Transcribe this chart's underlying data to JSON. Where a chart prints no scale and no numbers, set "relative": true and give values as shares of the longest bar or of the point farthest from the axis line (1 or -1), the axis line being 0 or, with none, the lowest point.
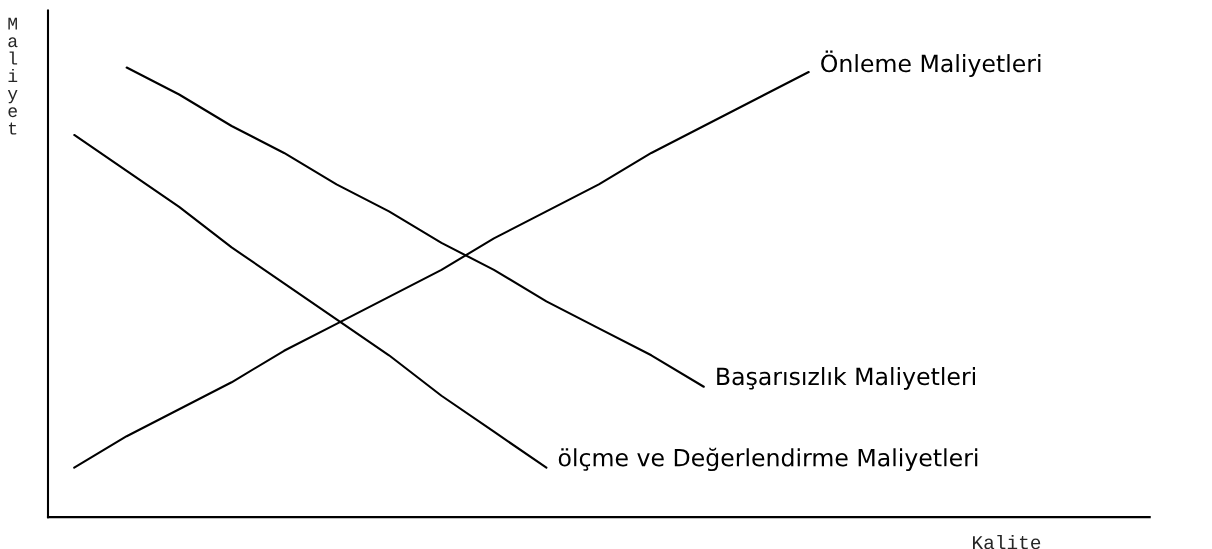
{
  "chart_data": {
    "type": "line",
    "relative": true,
    "xlabel": "Kalite",
    "ylabel": "Maliyet",
    "categories": [
      null,
      null,
      null,
      null,
      null,
      null,
      null,
      null,
      null,
      null,
      null,
      null,
      null,
      null,
      null,
      null,
      null,
      null,
      null,
      null,
      null
    ],
    "series": [
      {
        "name": "Önleme Maliyetleri",
        "color": "#000000",
        "values": [
          0.11,
          0.18,
          0.24,
          0.3,
          0.37,
          0.43,
          0.49,
          0.55,
          0.62,
          0.68,
          0.74,
          0.81,
          0.87,
          0.93,
          0.99,
          null,
          null,
          null,
          null,
          null,
          null
        ]
      },
      {
        "name": "Başarısızlık Maliyetleri",
        "color": "#000000",
        "values": [
          null,
          1.0,
          0.94,
          0.87,
          0.81,
          0.74,
          0.68,
          0.61,
          0.55,
          0.48,
          0.42,
          0.36,
          0.29,
          null,
          null,
          null,
          null,
          null,
          null,
          null,
          null
        ]
      },
      {
        "name": "ölçme ve Değerlendirme Maliyetleri",
        "color": "#000000",
        "values": [
          0.85,
          0.77,
          0.69,
          0.6,
          0.52,
          0.44,
          0.36,
          0.27,
          0.19,
          0.11,
          null,
          null,
          null,
          null,
          null,
          null,
          null,
          null,
          null,
          null,
          null
        ]
      }
    ],
    "grid": false,
    "legend": false
  }
}
